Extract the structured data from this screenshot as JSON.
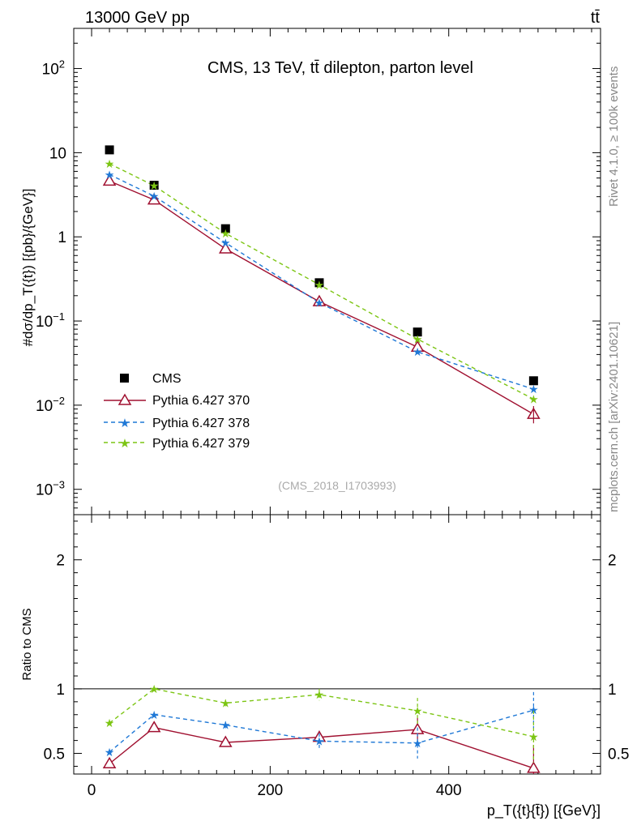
{
  "header": {
    "left_label": "13000 GeV pp",
    "right_label": "tt̄"
  },
  "side_labels": {
    "rivet": "Rivet 4.1.0, ≥ 100k events",
    "mcplots": "mcplots.cern.ch [arXiv:2401.10621]"
  },
  "colors": {
    "cms": "#000000",
    "p370": "#a01030",
    "p378": "#1f78d6",
    "p379": "#7cc513"
  },
  "chart_data": [
    {
      "type": "line",
      "name": "main",
      "title": "CMS, 13 TeV, tt̄ dilepton, parton level",
      "analysis_id": "(CMS_2018_I1703993)",
      "ylabel": "#dσ/dp_T({t}) [{pb}/{GeV}]",
      "yscale": "log",
      "ylim": [
        0.0005,
        300
      ],
      "xlim": [
        -20,
        570
      ],
      "ytick_labels": [
        {
          "v": 100,
          "base": "10",
          "exp": "2"
        },
        {
          "v": 10,
          "base": "10",
          "exp": ""
        },
        {
          "v": 1,
          "base": "1",
          "exp": ""
        },
        {
          "v": 0.1,
          "base": "10",
          "exp": "−1"
        },
        {
          "v": 0.01,
          "base": "10",
          "exp": "−2"
        },
        {
          "v": 0.001,
          "base": "10",
          "exp": "−3"
        }
      ],
      "x": [
        20,
        70,
        150,
        255,
        365,
        495
      ],
      "series": [
        {
          "name": "CMS",
          "key": "cms",
          "marker": "square",
          "line": "none",
          "values": [
            10.8,
            4.1,
            1.25,
            0.285,
            0.074,
            0.0195
          ]
        },
        {
          "name": "Pythia 6.427 370",
          "key": "p370",
          "marker": "triangle",
          "line": "solid",
          "values": [
            4.6,
            2.75,
            0.72,
            0.17,
            0.049,
            0.0078
          ]
        },
        {
          "name": "Pythia 6.427 378",
          "key": "p378",
          "marker": "star",
          "line": "dashed",
          "values": [
            5.5,
            3.05,
            0.85,
            0.165,
            0.043,
            0.0155
          ]
        },
        {
          "name": "Pythia 6.427 379",
          "key": "p379",
          "marker": "star",
          "line": "dashed",
          "values": [
            7.4,
            4.05,
            1.1,
            0.27,
            0.061,
            0.0118
          ]
        }
      ]
    },
    {
      "type": "line",
      "name": "ratio",
      "ylabel": "Ratio to CMS",
      "xlabel": "p_T({t}{t̄}) [{GeV}]",
      "yscale": "linear",
      "ylim": [
        0.34,
        2.35
      ],
      "xlim": [
        -20,
        570
      ],
      "yticks": [
        0.5,
        1,
        2
      ],
      "ytick_labels": [
        "0.5",
        "1",
        "2"
      ],
      "xticks": [
        0,
        200,
        400
      ],
      "xtick_labels": [
        "0",
        "200",
        "400"
      ],
      "x": [
        20,
        70,
        150,
        255,
        365,
        495
      ],
      "series": [
        {
          "name": "Pythia 6.427 370",
          "key": "p370",
          "marker": "triangle",
          "line": "solid",
          "values": [
            0.42,
            0.7,
            0.585,
            0.625,
            0.685,
            0.385
          ],
          "errors": [
            0,
            0,
            0.02,
            0.05,
            0.09,
            0.18
          ]
        },
        {
          "name": "Pythia 6.427 378",
          "key": "p378",
          "marker": "star",
          "line": "dashed",
          "values": [
            0.51,
            0.8,
            0.72,
            0.595,
            0.58,
            0.835
          ],
          "errors": [
            0.01,
            0.015,
            0.025,
            0.06,
            0.12,
            0.14
          ]
        },
        {
          "name": "Pythia 6.427 379",
          "key": "p379",
          "marker": "star",
          "line": "dashed",
          "values": [
            0.735,
            1.0,
            0.89,
            0.955,
            0.83,
            0.63
          ],
          "errors": [
            0.01,
            0.015,
            0.025,
            0.045,
            0.1,
            0.2
          ]
        }
      ]
    }
  ]
}
